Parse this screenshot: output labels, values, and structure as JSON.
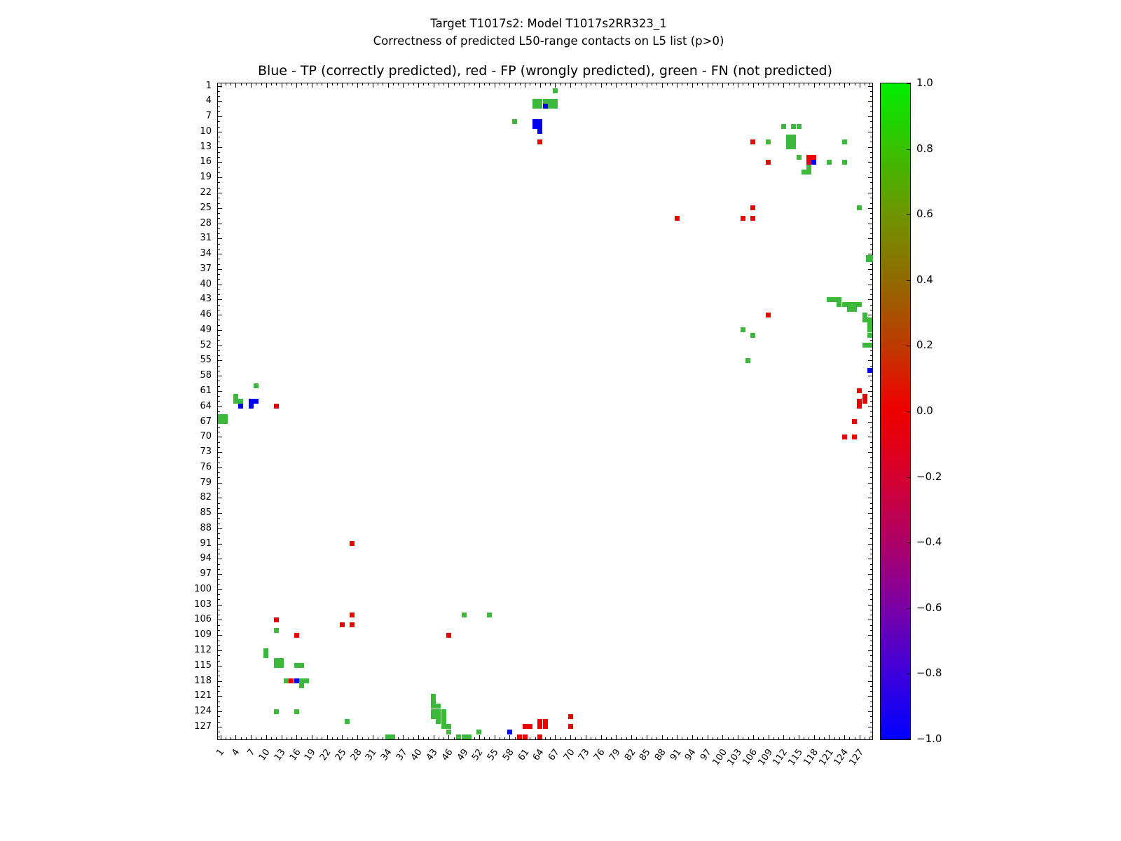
{
  "figure": {
    "suptitle_line1": "Target T1017s2: Model T1017s2RR323_1",
    "suptitle_line2": "Correctness of predicted L50-range contacts on L5 list (p>0)",
    "axes_title": "Blue - TP (correctly predicted), red - FP (wrongly predicted), green - FN (not predicted)"
  },
  "chart_data": {
    "type": "scatter",
    "title": "Blue - TP (correctly predicted), red - FP (wrongly predicted), green - FN (not predicted)",
    "xlabel": "",
    "ylabel": "",
    "x_range": [
      0.5,
      129.5
    ],
    "y_range": [
      0.5,
      129.5
    ],
    "y_inverted": true,
    "grid": false,
    "x_ticks": [
      1,
      4,
      7,
      10,
      13,
      16,
      19,
      22,
      25,
      28,
      31,
      34,
      37,
      40,
      43,
      46,
      49,
      52,
      55,
      58,
      61,
      64,
      67,
      70,
      73,
      76,
      79,
      82,
      85,
      88,
      91,
      94,
      97,
      100,
      103,
      106,
      109,
      112,
      115,
      118,
      121,
      124,
      127
    ],
    "y_ticks": [
      1,
      4,
      7,
      10,
      13,
      16,
      19,
      22,
      25,
      28,
      31,
      34,
      37,
      40,
      43,
      46,
      49,
      52,
      55,
      58,
      61,
      64,
      67,
      70,
      73,
      76,
      79,
      82,
      85,
      88,
      91,
      94,
      97,
      100,
      103,
      106,
      109,
      112,
      115,
      118,
      121,
      124,
      127
    ],
    "legend": {
      "b": "TP (correctly predicted)",
      "r": "FP (wrongly predicted)",
      "g": "FN (not predicted)"
    },
    "colors": {
      "b": "#0000ee",
      "r": "#ee0000",
      "g": "#3cb83c"
    },
    "colorbar": {
      "min": -1.0,
      "max": 1.0,
      "ticks": [
        {
          "v": 1.0,
          "label": "1.0"
        },
        {
          "v": 0.8,
          "label": "0.8"
        },
        {
          "v": 0.6,
          "label": "0.6"
        },
        {
          "v": 0.4,
          "label": "0.4"
        },
        {
          "v": 0.2,
          "label": "0.2"
        },
        {
          "v": 0.0,
          "label": "0.0"
        },
        {
          "v": -0.2,
          "label": "−0.2"
        },
        {
          "v": -0.4,
          "label": "−0.4"
        },
        {
          "v": -0.6,
          "label": "−0.6"
        },
        {
          "v": -0.8,
          "label": "−0.8"
        },
        {
          "v": -1.0,
          "label": "−1.0"
        }
      ],
      "gradient_stops": [
        [
          1.0,
          "#00ee00"
        ],
        [
          0.85,
          "#2acc00"
        ],
        [
          0.6,
          "#6e9500"
        ],
        [
          0.4,
          "#916a00"
        ],
        [
          0.2,
          "#bd3a00"
        ],
        [
          0.05,
          "#e80b00"
        ],
        [
          0.0,
          "#ee0000"
        ],
        [
          -0.2,
          "#d6002e"
        ],
        [
          -0.4,
          "#ad0068"
        ],
        [
          -0.6,
          "#7a00a6"
        ],
        [
          -0.8,
          "#3d00dd"
        ],
        [
          -1.0,
          "#0000ff"
        ]
      ]
    },
    "points": [
      [
        67,
        2,
        "g"
      ],
      [
        63,
        4,
        "g"
      ],
      [
        64,
        4,
        "g"
      ],
      [
        65,
        4,
        "g"
      ],
      [
        66,
        4,
        "g"
      ],
      [
        67,
        4,
        "g"
      ],
      [
        63,
        5,
        "g"
      ],
      [
        64,
        5,
        "g"
      ],
      [
        66,
        5,
        "g"
      ],
      [
        67,
        5,
        "g"
      ],
      [
        65,
        5,
        "b"
      ],
      [
        59,
        8,
        "g"
      ],
      [
        63,
        8,
        "b"
      ],
      [
        64,
        8,
        "b"
      ],
      [
        63,
        9,
        "b"
      ],
      [
        64,
        9,
        "b"
      ],
      [
        64,
        10,
        "b"
      ],
      [
        64,
        12,
        "r"
      ],
      [
        112,
        9,
        "g"
      ],
      [
        114,
        9,
        "g"
      ],
      [
        115,
        9,
        "g"
      ],
      [
        106,
        12,
        "r"
      ],
      [
        109,
        12,
        "g"
      ],
      [
        113,
        11,
        "g"
      ],
      [
        114,
        11,
        "g"
      ],
      [
        113,
        12,
        "g"
      ],
      [
        114,
        12,
        "g"
      ],
      [
        113,
        13,
        "g"
      ],
      [
        114,
        13,
        "g"
      ],
      [
        124,
        12,
        "g"
      ],
      [
        115,
        15,
        "g"
      ],
      [
        109,
        16,
        "r"
      ],
      [
        117,
        15,
        "r"
      ],
      [
        118,
        15,
        "r"
      ],
      [
        117,
        16,
        "r"
      ],
      [
        118,
        16,
        "b"
      ],
      [
        121,
        16,
        "g"
      ],
      [
        124,
        16,
        "g"
      ],
      [
        117,
        17,
        "g"
      ],
      [
        116,
        18,
        "g"
      ],
      [
        117,
        18,
        "g"
      ],
      [
        106,
        25,
        "r"
      ],
      [
        127,
        25,
        "g"
      ],
      [
        91,
        27,
        "r"
      ],
      [
        104,
        27,
        "r"
      ],
      [
        106,
        27,
        "r"
      ],
      [
        129,
        35,
        "g",
        1.4
      ],
      [
        121,
        43,
        "g"
      ],
      [
        122,
        43,
        "g"
      ],
      [
        123,
        43,
        "g"
      ],
      [
        123,
        44,
        "g"
      ],
      [
        124,
        44,
        "g"
      ],
      [
        125,
        44,
        "g"
      ],
      [
        126,
        44,
        "g"
      ],
      [
        127,
        44,
        "g"
      ],
      [
        125,
        45,
        "g"
      ],
      [
        126,
        45,
        "g"
      ],
      [
        109,
        46,
        "r"
      ],
      [
        128,
        46,
        "g"
      ],
      [
        128,
        47,
        "g"
      ],
      [
        129,
        47,
        "g"
      ],
      [
        104,
        49,
        "g"
      ],
      [
        129,
        48,
        "g"
      ],
      [
        129,
        49,
        "g"
      ],
      [
        106,
        50,
        "g"
      ],
      [
        129,
        50,
        "g"
      ],
      [
        128,
        52,
        "g"
      ],
      [
        129,
        52,
        "g"
      ],
      [
        105,
        55,
        "g"
      ],
      [
        129,
        57,
        "b"
      ],
      [
        127,
        61,
        "r"
      ],
      [
        128,
        62,
        "r"
      ],
      [
        127,
        63,
        "r"
      ],
      [
        128,
        63,
        "r"
      ],
      [
        127,
        64,
        "r"
      ],
      [
        126,
        67,
        "r"
      ],
      [
        124,
        70,
        "r"
      ],
      [
        126,
        70,
        "r"
      ],
      [
        8,
        60,
        "g"
      ],
      [
        4,
        62,
        "g"
      ],
      [
        4,
        63,
        "g"
      ],
      [
        5,
        63,
        "g"
      ],
      [
        7,
        63,
        "b"
      ],
      [
        8,
        63,
        "b"
      ],
      [
        5,
        64,
        "b"
      ],
      [
        7,
        64,
        "b"
      ],
      [
        12,
        64,
        "r"
      ],
      [
        1,
        66,
        "g"
      ],
      [
        2,
        66,
        "g"
      ],
      [
        1,
        67,
        "g"
      ],
      [
        2,
        67,
        "g"
      ],
      [
        27,
        91,
        "r"
      ],
      [
        49,
        105,
        "g"
      ],
      [
        54,
        105,
        "g"
      ],
      [
        27,
        105,
        "r"
      ],
      [
        12,
        106,
        "r"
      ],
      [
        25,
        107,
        "r"
      ],
      [
        27,
        107,
        "r"
      ],
      [
        12,
        108,
        "g"
      ],
      [
        16,
        109,
        "r"
      ],
      [
        46,
        109,
        "r"
      ],
      [
        10,
        112,
        "g"
      ],
      [
        10,
        113,
        "g"
      ],
      [
        12,
        114,
        "g"
      ],
      [
        13,
        114,
        "g"
      ],
      [
        12,
        115,
        "g"
      ],
      [
        13,
        115,
        "g"
      ],
      [
        16,
        115,
        "g"
      ],
      [
        17,
        115,
        "g"
      ],
      [
        14,
        118,
        "g"
      ],
      [
        15,
        118,
        "r"
      ],
      [
        16,
        118,
        "b"
      ],
      [
        17,
        118,
        "g"
      ],
      [
        18,
        118,
        "g"
      ],
      [
        17,
        119,
        "g"
      ],
      [
        43,
        121,
        "g"
      ],
      [
        43,
        122,
        "g"
      ],
      [
        12,
        124,
        "g"
      ],
      [
        16,
        124,
        "g"
      ],
      [
        26,
        126,
        "g"
      ],
      [
        43,
        123,
        "g"
      ],
      [
        44,
        123,
        "g"
      ],
      [
        43,
        124,
        "g"
      ],
      [
        44,
        124,
        "g"
      ],
      [
        45,
        124,
        "g"
      ],
      [
        43,
        125,
        "g"
      ],
      [
        44,
        125,
        "g"
      ],
      [
        45,
        125,
        "g"
      ],
      [
        44,
        126,
        "g"
      ],
      [
        45,
        126,
        "g"
      ],
      [
        45,
        127,
        "g"
      ],
      [
        46,
        127,
        "g"
      ],
      [
        34,
        129,
        "g"
      ],
      [
        35,
        129,
        "g"
      ],
      [
        46,
        128,
        "g"
      ],
      [
        48,
        129,
        "g"
      ],
      [
        49,
        129,
        "g"
      ],
      [
        50,
        129,
        "g"
      ],
      [
        52,
        128,
        "g"
      ],
      [
        58,
        128,
        "b"
      ],
      [
        61,
        127,
        "r"
      ],
      [
        62,
        127,
        "r"
      ],
      [
        64,
        126,
        "r"
      ],
      [
        65,
        126,
        "r"
      ],
      [
        64,
        127,
        "r"
      ],
      [
        65,
        127,
        "r"
      ],
      [
        70,
        125,
        "r"
      ],
      [
        70,
        127,
        "r"
      ],
      [
        60,
        129,
        "r"
      ],
      [
        61,
        129,
        "r"
      ],
      [
        64,
        129,
        "r"
      ]
    ]
  }
}
